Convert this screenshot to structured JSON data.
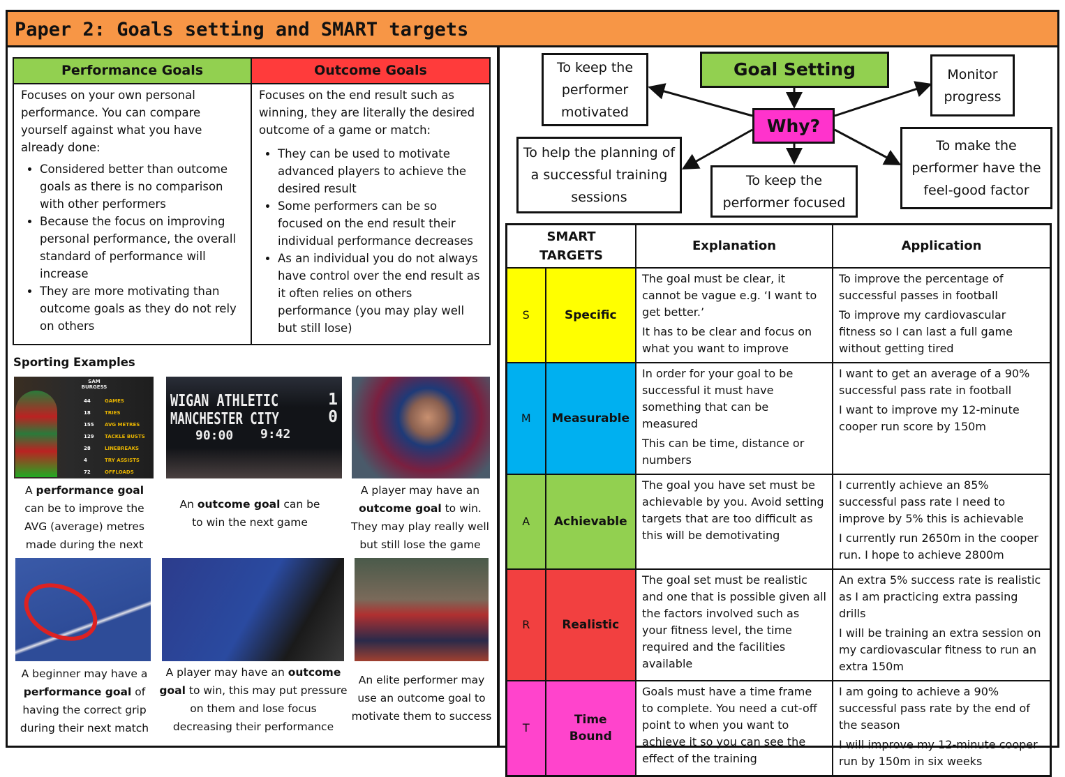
{
  "title": "Paper 2: Goals setting and SMART targets",
  "goals_table": {
    "performance": {
      "heading": "Performance Goals",
      "intro": "Focuses on your own personal performance. You can compare yourself against what you have already done:",
      "points": [
        "Considered better than outcome goals as there is no comparison with other performers",
        "Because the focus on improving personal performance, the overall standard of performance will increase",
        "They are more motivating than outcome goals as they do not rely on others"
      ]
    },
    "outcome": {
      "heading": "Outcome Goals",
      "intro": "Focuses on the end result such as winning, they are literally the desired outcome of a game or match:",
      "points": [
        "They can be used to motivate advanced players to achieve the desired result",
        "Some performers can be so focused on the end result their individual performance decreases",
        "As an individual you do not always have control over the end result as it often relies on others performance (you may play well but still lose)"
      ]
    }
  },
  "examples": {
    "heading": "Sporting Examples",
    "stats_card": {
      "name": "SAM BURGESS",
      "rows": [
        [
          "44",
          "GAMES"
        ],
        [
          "18",
          "TRIES"
        ],
        [
          "155",
          "AVG METRES"
        ],
        [
          "129",
          "TACKLE BUSTS"
        ],
        [
          "28",
          "LINEBREAKS"
        ],
        [
          "4",
          "TRY ASSISTS"
        ],
        [
          "72",
          "OFFLOADS"
        ]
      ]
    },
    "scoreboard": {
      "team1": "WIGAN ATHLETIC",
      "score1": "1",
      "team2": "MANCHESTER CITY",
      "score2": "0",
      "time1": "90:00",
      "time2": "9:42"
    },
    "captions": [
      {
        "pre": "A ",
        "bold": "performance goal",
        "post": " can be to improve the AVG (average) metres made during the next match"
      },
      {
        "pre": "An ",
        "bold": "outcome goal",
        "post": " can be to win the next game"
      },
      {
        "pre": "A player may have an ",
        "bold": "outcome goal",
        "post": " to win. They may play really well but still lose the game"
      },
      {
        "pre": "A beginner may have a ",
        "bold": "performance goal",
        "post": " of having the correct grip during their next match"
      },
      {
        "pre": "A player may have an ",
        "bold": "outcome goal",
        "post": " to win, this may put pressure on them and lose focus decreasing their performance"
      },
      {
        "pre": "An elite performer may use an outcome goal to motivate them to success",
        "bold": "",
        "post": ""
      }
    ]
  },
  "mindmap": {
    "center": "Goal Setting",
    "why": "Why?",
    "motivated": "To keep the performer motivated",
    "monitor": "Monitor progress",
    "planning": "To help the planning of a successful training sessions",
    "focused": "To keep the performer focused",
    "feelgood": "To make the performer have the feel-good factor",
    "colors": {
      "center": "#92d050",
      "why": "#ff33cc"
    }
  },
  "smart": {
    "headers": [
      "SMART TARGETS",
      "Explanation",
      "Application"
    ],
    "rows": [
      {
        "letter": "S",
        "word": "Specific",
        "color": "#ffff00",
        "explanation": [
          "The goal must be clear, it cannot be vague e.g. ‘I want to get better.’",
          "It has to be clear and focus on what you want to improve"
        ],
        "application": [
          "To improve the percentage of successful passes in football",
          "To improve my cardiovascular fitness so I can last a full game without getting tired"
        ]
      },
      {
        "letter": "M",
        "word": "Measurable",
        "color": "#00b0f0",
        "explanation": [
          "In order for your goal to be successful it must have something that can be measured",
          "This can be time, distance or numbers"
        ],
        "application": [
          "I want to get an average of a 90% successful pass rate in football",
          "I want to improve my 12-minute cooper run score by 150m"
        ]
      },
      {
        "letter": "A",
        "word": "Achievable",
        "color": "#92d050",
        "explanation": [
          "The goal you have set must be achievable by you. Avoid setting targets that are too difficult as this will be demotivating"
        ],
        "application": [
          "I currently achieve an 85% successful pass rate I need to improve by 5% this is achievable",
          "I currently run 2650m in the cooper run. I hope to achieve 2800m"
        ]
      },
      {
        "letter": "R",
        "word": "Realistic",
        "color": "#f24040",
        "explanation": [
          "The goal set must be realistic and one that is possible given all the factors involved such as your fitness level, the time required and the facilities available"
        ],
        "application": [
          "An extra 5% success rate is realistic as I am practicing extra passing drills",
          "I will be training an extra session on my cardiovascular fitness to run an extra 150m"
        ]
      },
      {
        "letter": "T",
        "word": "Time Bound",
        "color": "#ff44cc",
        "explanation": [
          "Goals must have a time frame to complete. You need a cut-off point to when you want to achieve it so you can see the effect of the training"
        ],
        "application": [
          "I am going to achieve a 90% successful pass rate by the end of the season",
          "I will improve my 12-minute cooper run by 150m in six weeks"
        ]
      }
    ]
  },
  "colors": {
    "header": "#f79646",
    "performance": "#92d050",
    "outcome": "#ff3b3b"
  }
}
